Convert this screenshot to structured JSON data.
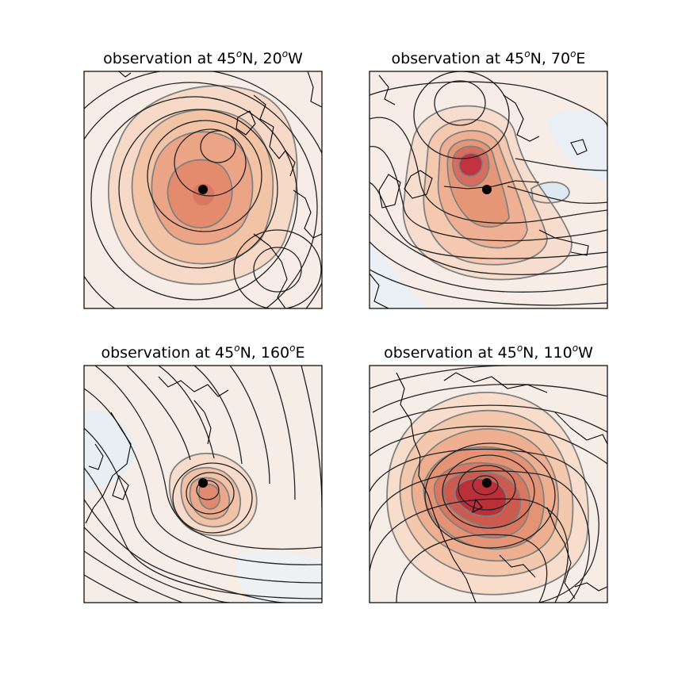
{
  "figure": {
    "background": "#ffffff",
    "colormap": "RdBu_r",
    "contour_colors": {
      "isobar": "#222222",
      "anomaly": "#808080",
      "marker": "#000000"
    }
  },
  "chart_data": [
    {
      "type": "contour",
      "title_parts": [
        "observation at 45",
        "o",
        "N, 20",
        "o",
        "W"
      ],
      "observation": {
        "lat": 45,
        "lon": -20
      },
      "anomaly_peak_level": 5,
      "marker_label": "observation point"
    },
    {
      "type": "contour",
      "title_parts": [
        "observation at 45",
        "o",
        "N, 70",
        "o",
        "E"
      ],
      "observation": {
        "lat": 45,
        "lon": 70
      },
      "anomaly_peak_level": 7,
      "marker_label": "observation point"
    },
    {
      "type": "contour",
      "title_parts": [
        "observation at 45",
        "o",
        "N, 160",
        "o",
        "E"
      ],
      "observation": {
        "lat": 45,
        "lon": 160
      },
      "anomaly_peak_level": 5,
      "marker_label": "observation point"
    },
    {
      "type": "contour",
      "title_parts": [
        "observation at 45",
        "o",
        "N, 110",
        "o",
        "W"
      ],
      "observation": {
        "lat": 45,
        "lon": -110
      },
      "anomaly_peak_level": 8,
      "marker_label": "observation point"
    }
  ]
}
